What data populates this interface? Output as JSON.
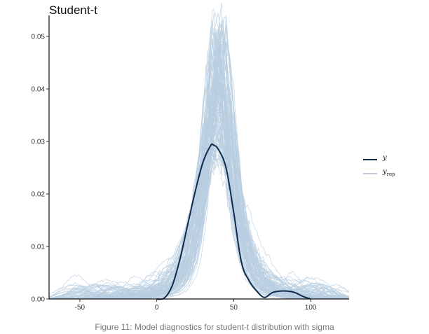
{
  "chart_data": {
    "type": "line",
    "title": "Student-t",
    "xlabel": "",
    "ylabel": "",
    "xlim": [
      -70,
      125
    ],
    "ylim": [
      0,
      0.054
    ],
    "x_ticks": [
      -50,
      0,
      50,
      100
    ],
    "y_ticks": [
      0,
      0.01,
      0.02,
      0.03,
      0.04,
      0.05
    ],
    "x_tick_labels": [
      "-50",
      "0",
      "50",
      "100"
    ],
    "y_tick_labels": [
      "0.00",
      "0.01",
      "0.02",
      "0.03",
      "0.04",
      "0.05"
    ],
    "grid": false,
    "legend_position": "right",
    "series": [
      {
        "name": "y",
        "role": "observed density",
        "color": "#0d2a4f",
        "x": [
          0,
          5,
          10,
          15,
          20,
          25,
          30,
          35,
          37,
          40,
          45,
          50,
          55,
          60,
          65,
          70,
          75,
          80,
          85,
          90,
          95,
          100
        ],
        "y": [
          0,
          0.0002,
          0.0025,
          0.0075,
          0.014,
          0.0205,
          0.026,
          0.0292,
          0.0293,
          0.0285,
          0.025,
          0.0165,
          0.007,
          0.0035,
          0.0015,
          0.0003,
          0.0012,
          0.0015,
          0.0015,
          0.0012,
          0.0005,
          0
        ]
      },
      {
        "name": "y_rep",
        "role": "replicated densities (100 draws)",
        "color": "#b8cde0",
        "draws": 100,
        "peak_range": [
          0.026,
          0.053
        ],
        "mode_range": [
          36,
          44
        ]
      }
    ]
  },
  "legend": {
    "items": [
      {
        "label": "y",
        "color": "#0d2a4f"
      },
      {
        "label": "y",
        "subscript": "rep",
        "color": "#b8cde0"
      }
    ]
  },
  "caption": "Figure 11: Model diagnostics for student-t distribution with sigma"
}
